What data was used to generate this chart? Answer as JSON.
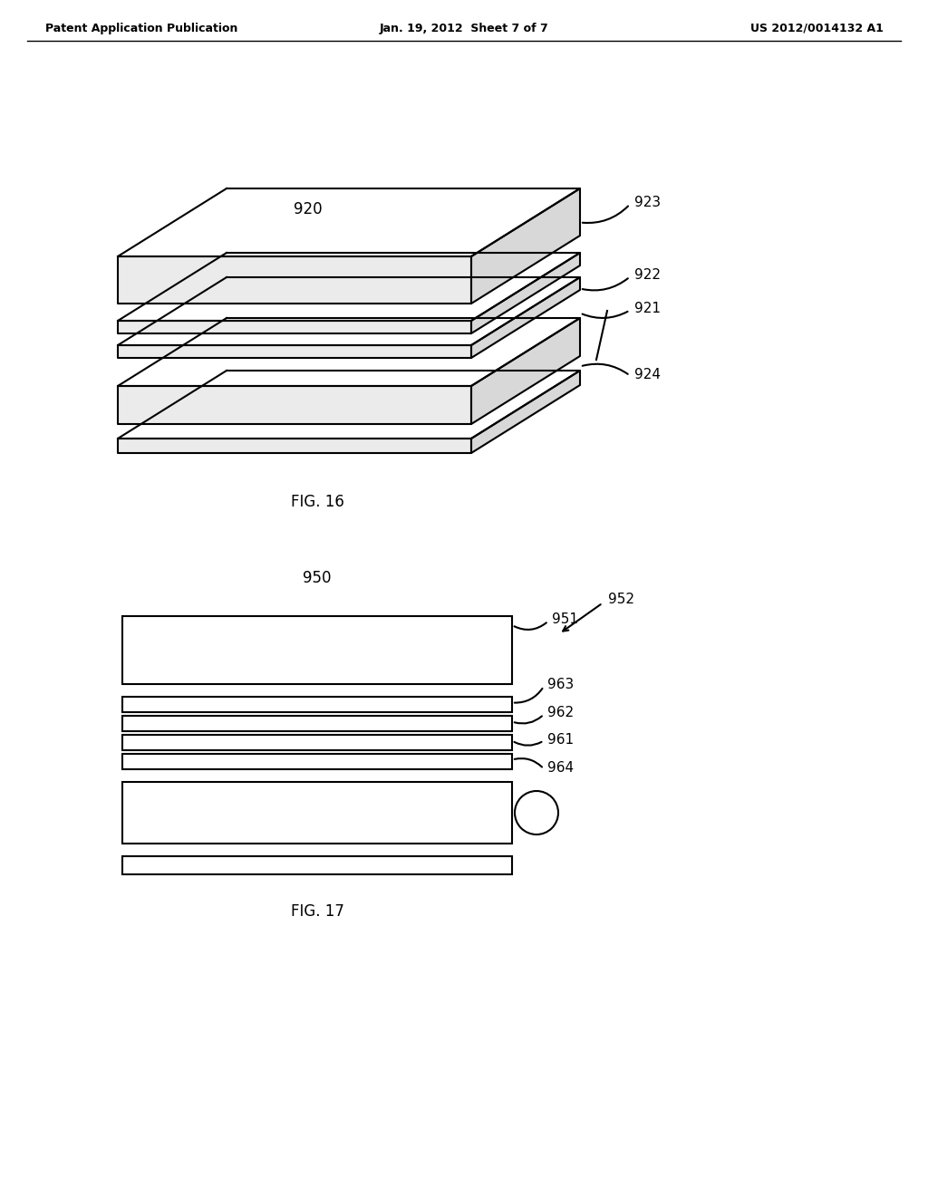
{
  "bg_color": "#ffffff",
  "line_color": "#000000",
  "header_left": "Patent Application Publication",
  "header_mid": "Jan. 19, 2012  Sheet 7 of 7",
  "header_right": "US 2012/0014132 A1",
  "fig16_label": "FIG. 16",
  "fig17_label": "FIG. 17",
  "label_920": "920",
  "label_923": "923",
  "label_922": "922",
  "label_921": "921",
  "label_924": "924",
  "label_950": "950",
  "label_951": "951",
  "label_952": "952",
  "label_963": "963",
  "label_962": "962",
  "label_961": "961",
  "label_964": "964"
}
